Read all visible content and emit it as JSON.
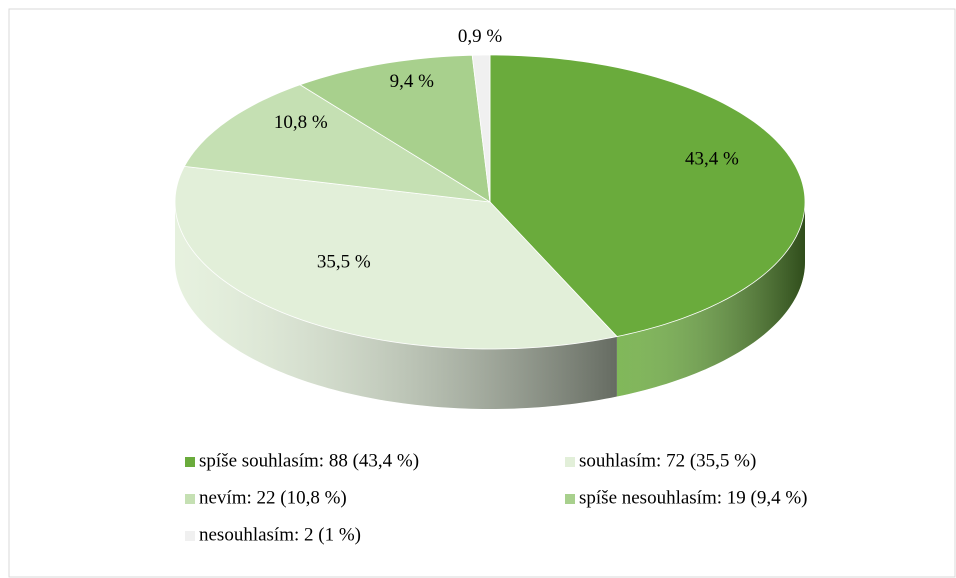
{
  "chart_data": {
    "type": "pie3d",
    "categories": [
      "spíše souhlasím: 88 (43,4 %)",
      "souhlasím: 72 (35,5 %)",
      "nevím: 22 (10,8 %)",
      "spíše nesouhlasím: 19 (9,4 %)",
      "nesouhlasím: 2 (1 %)"
    ],
    "values": [
      43.4,
      35.5,
      10.8,
      9.4,
      0.9
    ],
    "value_labels": [
      "43,4 %",
      "35,5 %",
      "10,8 %",
      "9,4 %",
      "0,9 %"
    ],
    "colors": [
      "#6aab3c",
      "#e2efd9",
      "#c5e0b3",
      "#a8d08d",
      "#f0f0f0"
    ],
    "legend": "bottom"
  }
}
